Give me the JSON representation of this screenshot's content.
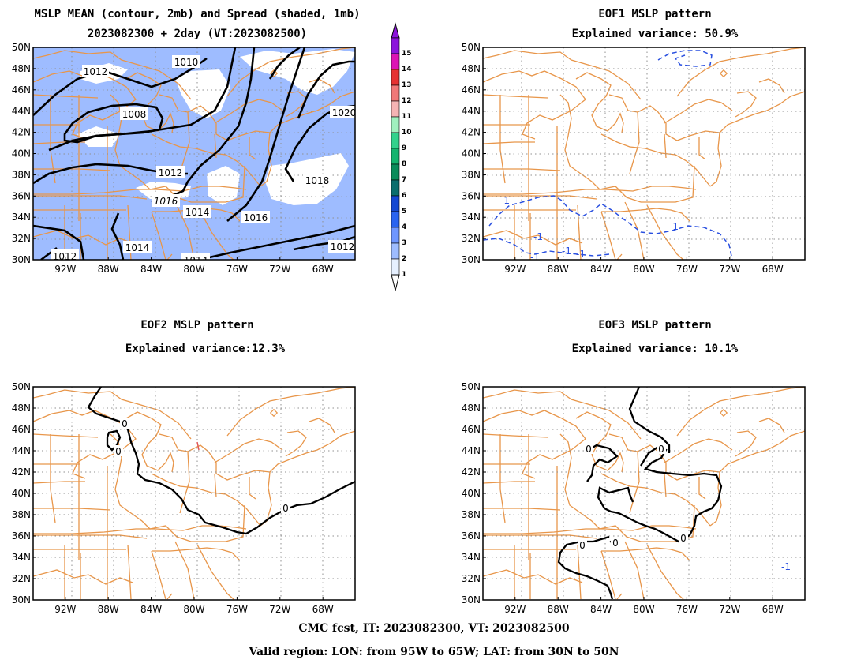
{
  "panels": [
    {
      "title1": "MSLP MEAN (contour, 2mb) and Spread (shaded, 1mb)",
      "title2": "2023082300 + 2day (VT:2023082500)"
    },
    {
      "title1": "EOF1 MSLP pattern",
      "title2": "Explained variance: 50.9%"
    },
    {
      "title1": "EOF2 MSLP pattern",
      "title2": "Explained variance:12.3%"
    },
    {
      "title1": "EOF3 MSLP pattern",
      "title2": "Explained variance: 10.1%"
    }
  ],
  "axes": {
    "lat_labels": [
      "50N",
      "48N",
      "46N",
      "44N",
      "42N",
      "40N",
      "38N",
      "36N",
      "34N",
      "32N",
      "30N"
    ],
    "lon_labels": [
      "92W",
      "88W",
      "84W",
      "80W",
      "76W",
      "72W",
      "68W"
    ]
  },
  "colorbar": {
    "labels": [
      "1",
      "2",
      "3",
      "4",
      "5",
      "6",
      "7",
      "8",
      "9",
      "10",
      "11",
      "12",
      "13",
      "14",
      "15"
    ],
    "colors": [
      "#e6f0ff",
      "#9ebcff",
      "#6e96ff",
      "#2a64f0",
      "#1448d2",
      "#0a6e6e",
      "#0a8c5a",
      "#14b46e",
      "#32d28c",
      "#a0f0be",
      "#f5b4b4",
      "#f07878",
      "#e63232",
      "#dc14b4",
      "#8c14dc"
    ]
  },
  "panel1_contours": [
    "1012",
    "1010",
    "1008",
    "1012",
    "1016",
    "1014",
    "1014",
    "1016",
    "1018",
    "1020",
    "1014",
    "1012",
    "1012"
  ],
  "panel2_contours": [
    "-1",
    "-1",
    "-1",
    "-1",
    "-1",
    "-1"
  ],
  "panel3_contours": [
    "0",
    "0",
    "0"
  ],
  "panel4_contours": [
    "0",
    "0",
    "0",
    "0",
    "0",
    "-1"
  ],
  "footer": {
    "line1": "CMC fcst, IT: 2023082300, VT: 2023082500",
    "line2": "Valid region: LON: from 95W to 65W; LAT: from 30N to 50N"
  }
}
